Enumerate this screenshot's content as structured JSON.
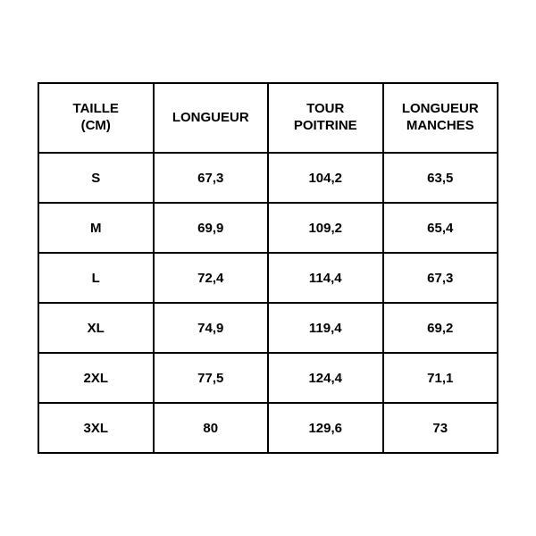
{
  "sizing_table": {
    "type": "table",
    "border_color": "#000000",
    "background_color": "#ffffff",
    "text_color": "#000000",
    "font_weight": 700,
    "header_fontsize": 15,
    "cell_fontsize": 15,
    "columns": [
      {
        "line1": "TAILLE",
        "line2": "(CM)"
      },
      {
        "line1": "LONGUEUR",
        "line2": ""
      },
      {
        "line1": "TOUR",
        "line2": "POITRINE"
      },
      {
        "line1": "LONGUEUR",
        "line2": "MANCHES"
      }
    ],
    "rows": [
      [
        "S",
        "67,3",
        "104,2",
        "63,5"
      ],
      [
        "M",
        "69,9",
        "109,2",
        "65,4"
      ],
      [
        "L",
        "72,4",
        "114,4",
        "67,3"
      ],
      [
        "XL",
        "74,9",
        "119,4",
        "69,2"
      ],
      [
        "2XL",
        "77,5",
        "124,4",
        "71,1"
      ],
      [
        "3XL",
        "80",
        "129,6",
        "73"
      ]
    ]
  }
}
